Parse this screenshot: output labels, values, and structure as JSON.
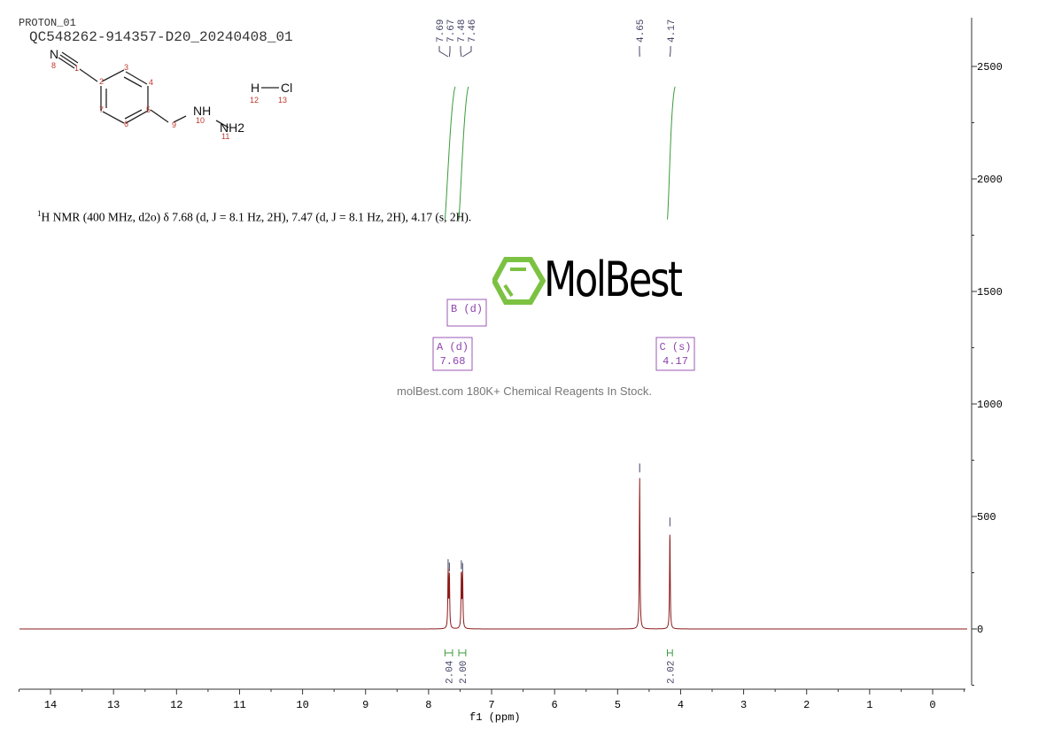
{
  "header": {
    "experiment": "PROTON_01",
    "sample": "QC548262-914357-D20_20240408_01"
  },
  "description": {
    "prefix": "1",
    "text": "H NMR (400 MHz, d2o) δ 7.68 (d, J = 8.1 Hz, 2H), 7.47 (d, J = 8.1 Hz, 2H), 4.17 (s, 2H)."
  },
  "structure": {
    "atoms": [
      "N",
      "NH",
      "NH2",
      "H",
      "Cl"
    ],
    "numbers": [
      "1",
      "2",
      "3",
      "4",
      "5",
      "6",
      "7",
      "8",
      "9",
      "10",
      "11",
      "12",
      "13"
    ]
  },
  "watermark": {
    "logo": "MolBest",
    "tagline": "molBest.com 180K+ Chemical Reagents In Stock."
  },
  "chart_data": {
    "type": "line",
    "xlabel": "f1 (ppm)",
    "xlim": [
      14.5,
      -0.5
    ],
    "x_reversed": true,
    "ylim": [
      -250,
      2700
    ],
    "xticks": [
      14,
      13,
      12,
      11,
      10,
      9,
      8,
      7,
      6,
      5,
      4,
      3,
      2,
      1,
      0
    ],
    "yticks": [
      0,
      500,
      1000,
      1500,
      2000,
      2500
    ],
    "line_color": "#8b1a1a",
    "peaks": [
      {
        "ppm": 7.69,
        "height": 255
      },
      {
        "ppm": 7.67,
        "height": 240
      },
      {
        "ppm": 7.48,
        "height": 250
      },
      {
        "ppm": 7.46,
        "height": 238
      },
      {
        "ppm": 4.65,
        "height": 680
      },
      {
        "ppm": 4.17,
        "height": 440
      }
    ],
    "peak_labels": [
      "7.69",
      "7.67",
      "7.48",
      "7.46",
      "4.65",
      "4.17"
    ],
    "integrals": [
      {
        "from": 7.74,
        "to": 7.62,
        "value": "2.04"
      },
      {
        "from": 7.52,
        "to": 7.41,
        "value": "2.00"
      },
      {
        "from": 4.21,
        "to": 4.13,
        "value": "2.02"
      }
    ],
    "multiplets": [
      {
        "label": "A (d)",
        "shift": "7.68"
      },
      {
        "label": "B (d)",
        "shift": ""
      },
      {
        "label": "C (s)",
        "shift": "4.17"
      }
    ]
  }
}
